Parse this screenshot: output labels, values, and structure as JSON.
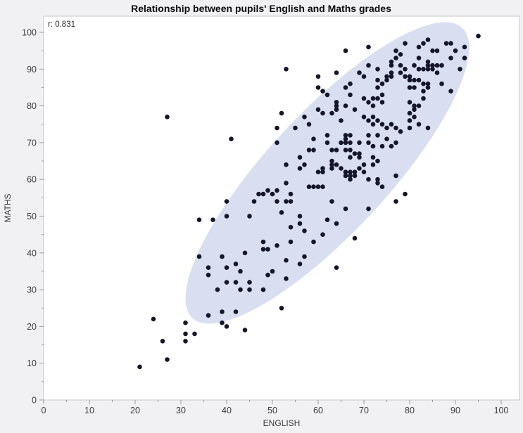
{
  "window": {
    "background": "#f1f1f3"
  },
  "chart_data": {
    "type": "scatter",
    "title": "Relationship between pupils' English and Maths grades",
    "annotation": "r: 0.831",
    "xlabel": "ENGLISH",
    "ylabel": "MATHS",
    "xlim": [
      0,
      104
    ],
    "ylim": [
      0,
      104.4
    ],
    "x_ticks": [
      0,
      10,
      20,
      30,
      40,
      50,
      60,
      70,
      80,
      90,
      100
    ],
    "y_ticks": [
      0,
      10,
      20,
      30,
      40,
      50,
      60,
      70,
      80,
      90,
      100
    ],
    "minor_tick_step": 5,
    "grid": false,
    "legend": "none",
    "point_color": "#15152b",
    "point_radius": 3.3,
    "ellipse": {
      "center": [
        62,
        61.75
      ],
      "semi_x": 31,
      "semi_y": 41,
      "r": 0.831,
      "fill": "#d9dff0"
    },
    "points": [
      [
        95,
        99
      ],
      [
        84,
        98
      ],
      [
        88,
        97
      ],
      [
        89,
        97
      ],
      [
        83,
        97
      ],
      [
        82,
        96
      ],
      [
        92,
        96
      ],
      [
        79,
        97
      ],
      [
        77,
        95
      ],
      [
        78,
        94
      ],
      [
        71,
        96
      ],
      [
        66,
        95
      ],
      [
        85,
        95
      ],
      [
        86,
        95
      ],
      [
        90,
        95
      ],
      [
        77,
        93
      ],
      [
        76,
        92
      ],
      [
        82,
        93
      ],
      [
        89,
        93
      ],
      [
        92,
        93
      ],
      [
        73,
        90
      ],
      [
        71,
        91
      ],
      [
        76,
        91
      ],
      [
        78,
        91
      ],
      [
        76,
        89
      ],
      [
        79,
        90
      ],
      [
        78,
        89
      ],
      [
        84,
        92
      ],
      [
        84,
        91
      ],
      [
        85,
        91
      ],
      [
        86,
        91
      ],
      [
        87,
        91
      ],
      [
        81,
        91
      ],
      [
        82,
        90
      ],
      [
        83,
        90
      ],
      [
        84,
        90
      ],
      [
        85,
        90
      ],
      [
        86,
        89
      ],
      [
        91,
        90
      ],
      [
        69,
        89
      ],
      [
        70,
        88
      ],
      [
        64,
        89
      ],
      [
        60,
        88
      ],
      [
        75,
        88
      ],
      [
        75,
        87
      ],
      [
        76,
        88
      ],
      [
        79,
        88
      ],
      [
        80,
        88
      ],
      [
        80,
        87
      ],
      [
        81,
        87
      ],
      [
        82,
        87
      ],
      [
        73,
        87
      ],
      [
        74,
        86
      ],
      [
        73,
        85
      ],
      [
        67,
        86
      ],
      [
        66,
        85
      ],
      [
        80,
        85
      ],
      [
        81,
        85
      ],
      [
        83,
        86
      ],
      [
        84,
        86
      ],
      [
        84,
        85
      ],
      [
        83,
        84
      ],
      [
        87,
        86
      ],
      [
        89,
        84
      ],
      [
        60,
        85
      ],
      [
        61,
        84
      ],
      [
        62,
        83
      ],
      [
        83,
        82
      ],
      [
        70,
        82
      ],
      [
        72,
        82
      ],
      [
        71,
        81
      ],
      [
        72,
        80
      ],
      [
        73,
        82
      ],
      [
        74,
        83
      ],
      [
        74,
        81
      ],
      [
        67,
        83
      ],
      [
        80,
        81
      ],
      [
        81,
        80
      ],
      [
        82,
        80
      ],
      [
        64,
        81
      ],
      [
        64,
        80
      ],
      [
        64,
        79
      ],
      [
        66,
        80
      ],
      [
        68,
        79
      ],
      [
        81,
        79
      ],
      [
        80,
        78
      ],
      [
        60,
        79
      ],
      [
        61,
        78
      ],
      [
        63,
        78
      ],
      [
        81,
        77
      ],
      [
        57,
        77
      ],
      [
        58,
        75
      ],
      [
        65,
        76
      ],
      [
        80,
        76
      ],
      [
        82,
        75
      ],
      [
        84,
        74
      ],
      [
        80,
        74
      ],
      [
        70,
        77
      ],
      [
        72,
        77
      ],
      [
        71,
        76
      ],
      [
        72,
        75
      ],
      [
        73,
        76
      ],
      [
        74,
        75
      ],
      [
        75,
        74
      ],
      [
        76,
        75
      ],
      [
        77,
        74
      ],
      [
        78,
        73
      ],
      [
        53,
        90
      ],
      [
        51,
        74
      ],
      [
        51,
        70
      ],
      [
        52,
        78
      ],
      [
        55,
        74
      ],
      [
        59,
        71
      ],
      [
        62,
        72
      ],
      [
        66,
        72
      ],
      [
        67,
        72
      ],
      [
        66,
        71
      ],
      [
        71,
        72
      ],
      [
        73,
        72
      ],
      [
        75,
        71
      ],
      [
        77,
        70
      ],
      [
        62,
        70
      ],
      [
        65,
        70
      ],
      [
        66,
        70
      ],
      [
        67,
        70
      ],
      [
        69,
        70
      ],
      [
        71,
        70
      ],
      [
        72,
        69
      ],
      [
        74,
        69
      ],
      [
        76,
        69
      ],
      [
        58,
        68
      ],
      [
        59,
        68
      ],
      [
        63,
        68
      ],
      [
        64,
        68
      ],
      [
        66,
        68
      ],
      [
        67,
        68
      ],
      [
        68,
        67
      ],
      [
        69,
        67
      ],
      [
        67,
        66
      ],
      [
        69,
        66
      ],
      [
        72,
        66
      ],
      [
        73,
        65
      ],
      [
        72,
        64
      ],
      [
        56,
        66
      ],
      [
        57,
        64
      ],
      [
        56,
        63
      ],
      [
        63,
        65
      ],
      [
        63,
        64
      ],
      [
        64,
        64
      ],
      [
        63,
        63
      ],
      [
        61,
        63
      ],
      [
        61,
        62
      ],
      [
        60,
        62
      ],
      [
        65,
        63
      ],
      [
        66,
        62
      ],
      [
        67,
        62
      ],
      [
        68,
        62
      ],
      [
        69,
        63
      ],
      [
        70,
        62
      ],
      [
        70,
        64
      ],
      [
        66,
        61
      ],
      [
        67,
        61
      ],
      [
        67,
        60
      ],
      [
        68,
        61
      ],
      [
        71,
        60
      ],
      [
        73,
        60
      ],
      [
        73,
        59
      ],
      [
        74,
        58
      ],
      [
        77,
        61
      ],
      [
        58,
        58
      ],
      [
        59,
        58
      ],
      [
        60,
        58
      ],
      [
        61,
        58
      ],
      [
        53,
        64
      ],
      [
        53,
        59
      ],
      [
        79,
        56
      ],
      [
        77,
        54
      ],
      [
        63,
        54
      ],
      [
        66,
        52
      ],
      [
        71,
        52
      ],
      [
        56,
        50
      ],
      [
        56,
        48
      ],
      [
        62,
        49
      ],
      [
        64,
        48
      ],
      [
        57,
        46
      ],
      [
        61,
        45
      ],
      [
        68,
        44
      ],
      [
        59,
        43
      ],
      [
        54,
        56
      ],
      [
        54,
        54
      ],
      [
        53,
        54
      ],
      [
        52,
        51
      ],
      [
        46,
        54
      ],
      [
        47,
        56
      ],
      [
        48,
        56
      ],
      [
        50,
        56
      ],
      [
        49,
        57
      ],
      [
        51,
        57
      ],
      [
        51,
        54
      ],
      [
        40,
        54
      ],
      [
        40,
        50
      ],
      [
        45,
        50
      ],
      [
        54,
        47
      ],
      [
        48,
        43
      ],
      [
        54,
        43
      ],
      [
        51,
        42
      ],
      [
        48,
        41
      ],
      [
        49,
        41
      ],
      [
        44,
        40
      ],
      [
        56,
        37
      ],
      [
        57,
        39
      ],
      [
        64,
        36
      ],
      [
        52,
        25
      ],
      [
        53,
        38
      ],
      [
        53,
        33
      ],
      [
        50,
        35
      ],
      [
        49,
        34
      ],
      [
        48,
        30
      ],
      [
        45,
        32
      ],
      [
        45,
        30
      ],
      [
        43,
        35
      ],
      [
        43,
        30
      ],
      [
        42,
        37
      ],
      [
        42,
        32
      ],
      [
        40,
        36
      ],
      [
        40,
        32
      ],
      [
        38,
        30
      ],
      [
        36,
        36
      ],
      [
        36,
        34
      ],
      [
        34,
        39
      ],
      [
        39,
        39
      ],
      [
        34,
        49
      ],
      [
        37,
        49
      ],
      [
        44,
        19
      ],
      [
        42,
        24
      ],
      [
        40,
        20
      ],
      [
        39,
        21
      ],
      [
        39,
        24
      ],
      [
        36,
        23
      ],
      [
        33,
        18
      ],
      [
        31,
        21
      ],
      [
        31,
        18
      ],
      [
        31,
        16
      ],
      [
        27,
        11
      ],
      [
        26,
        16
      ],
      [
        24,
        22
      ],
      [
        21,
        9
      ],
      [
        27,
        77
      ],
      [
        41,
        71
      ]
    ]
  }
}
